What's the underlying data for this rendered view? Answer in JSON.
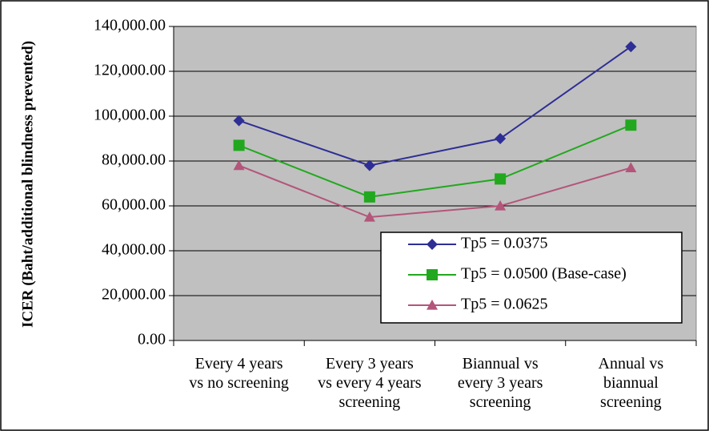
{
  "chart_data": {
    "type": "line",
    "y_label": "ICER (Baht/additional blindness prevented)",
    "categories": [
      "Every 4 years\nvs no screening",
      "Every 3 years\nvs every 4 years\nscreening",
      "Biannual vs\nevery 3 years\nscreening",
      "Annual vs\nbiannual\nscreening"
    ],
    "series": [
      {
        "name": "Tp5 = 0.0375",
        "color": "#2e2e96",
        "marker": "diamond",
        "values": [
          98000,
          78000,
          90000,
          131000
        ]
      },
      {
        "name": "Tp5 = 0.0500 (Base-case)",
        "color": "#22a81e",
        "marker": "square",
        "values": [
          87000,
          64000,
          72000,
          96000
        ]
      },
      {
        "name": "Tp5 = 0.0625",
        "color": "#b4557a",
        "marker": "triangle",
        "values": [
          78000,
          55000,
          60000,
          77000
        ]
      }
    ],
    "ylim": [
      0,
      140000
    ],
    "yticks": [
      {
        "value": 0,
        "label": "0.00"
      },
      {
        "value": 20000,
        "label": "20,000.00"
      },
      {
        "value": 40000,
        "label": "40,000.00"
      },
      {
        "value": 60000,
        "label": "60,000.00"
      },
      {
        "value": 80000,
        "label": "80,000.00"
      },
      {
        "value": 100000,
        "label": "100,000.00"
      },
      {
        "value": 120000,
        "label": "120,000.00"
      },
      {
        "value": 140000,
        "label": "140,000.00"
      }
    ],
    "grid": true,
    "plot_background": "#c0c0c0"
  }
}
